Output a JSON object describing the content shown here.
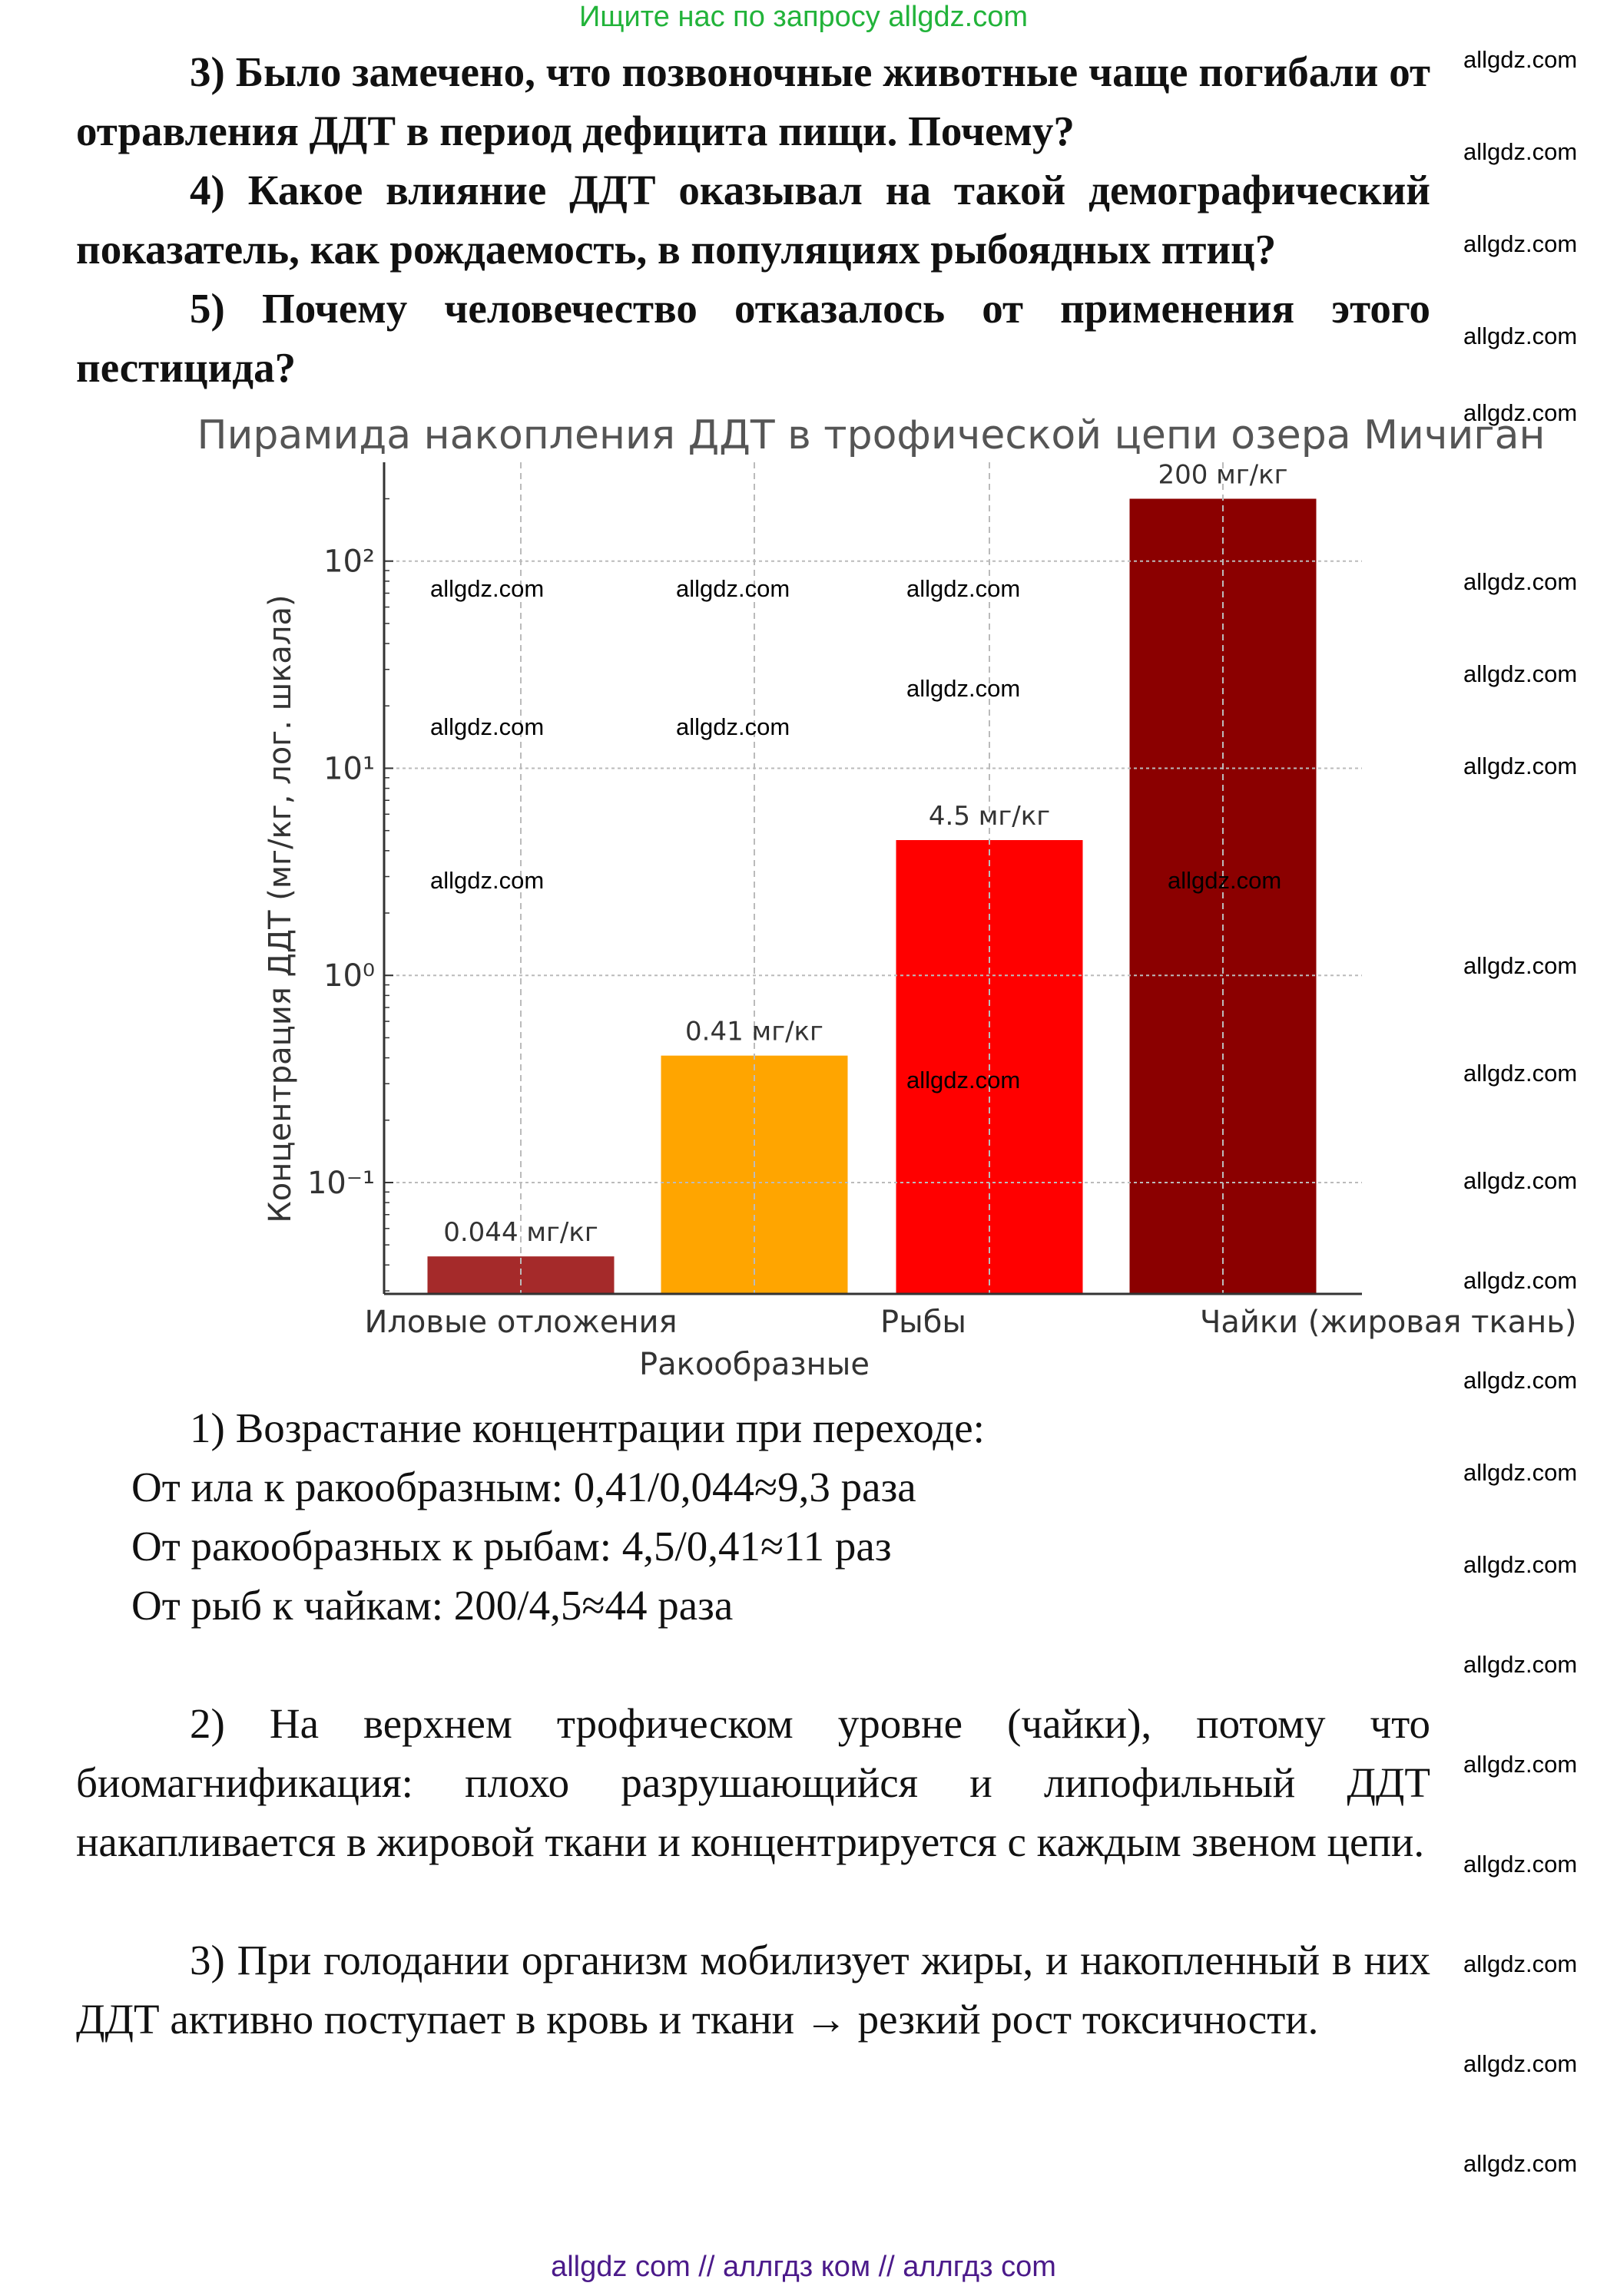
{
  "header": {
    "search_hint": "Ищите нас по запросу allgdz.com"
  },
  "questions": [
    "3)    Было замечено, что позвоночные животные чаще погибали от отравления ДДТ в период дефицита пищи. Почему?",
    "4)    Какое влияние ДДТ оказывал на такой демографический показатель, как рождаемость, в популяциях рыбоядных птиц?",
    "5)    Почему человечество отказалось от применения этого пестицида?"
  ],
  "chart_data": {
    "type": "bar",
    "title": "Пирамида накопления ДДТ в трофической цепи озера Мичиган",
    "ylabel": "Концентрация ДДТ (мг/кг, лог. шкала)",
    "xlabel": "",
    "yscale": "log",
    "ylim": [
      0.029,
      300
    ],
    "yticks": [
      0.1,
      1,
      10,
      100
    ],
    "ytick_labels": [
      "10⁻¹",
      "10⁰",
      "10¹",
      "10²"
    ],
    "grid": true,
    "categories": [
      "Иловые отложения",
      "Ракообразные",
      "Рыбы",
      "Чайки (жировая ткань)"
    ],
    "values": [
      0.044,
      0.41,
      4.5,
      200
    ],
    "data_labels": [
      "0.044 мг/кг",
      "0.41 мг/кг",
      "4.5 мг/кг",
      "200 мг/кг"
    ],
    "colors": [
      "#a52a2a",
      "#ffa500",
      "#ff0000",
      "#8b0000"
    ]
  },
  "answers": {
    "a1_title": "1) Возрастание концентрации при переходе:",
    "a1_lines": [
      "От ила к ракообразным: 0,41/0,044≈9,3 раза",
      "От ракообразных к рыбам: 4,5/0,41≈11 раз",
      "От рыб к чайкам: 200/4,5≈44 раза"
    ],
    "a2": "2) На верхнем трофическом уровне (чайки), потому что биомагнификация: плохо разрушающийся и липофильный ДДТ накапливается в жировой ткани и концентрируется с каждым звеном цепи.",
    "a3": "3) При голодании организм мобилизует жиры, и накопленный в них ДДТ активно поступает в кровь и ткани → резкий рост токсичности."
  },
  "watermark": "allgdz.com",
  "footer": {
    "text": "allgdz com  //  аллгдз ком  //  аллгдз com"
  }
}
